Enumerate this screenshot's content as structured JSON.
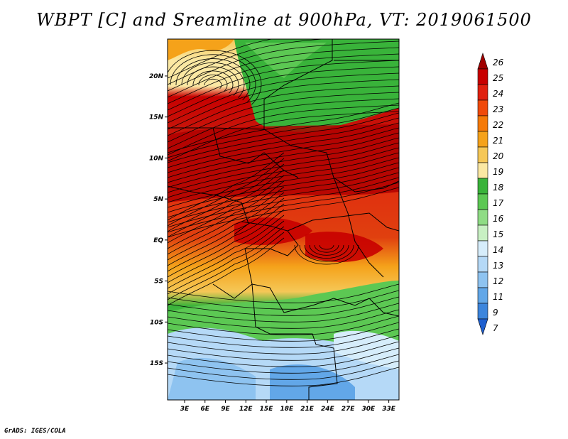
{
  "title": "WBPT [C] and Sreamline at 900hPa, VT: 2019061500",
  "footer": "GrADS: IGES/COLA",
  "map": {
    "lat_labels": [
      "20N",
      "15N",
      "10N",
      "5N",
      "EQ",
      "5S",
      "10S",
      "15S"
    ],
    "lon_labels": [
      "3E",
      "6E",
      "9E",
      "12E",
      "15E",
      "18E",
      "21E",
      "24E",
      "27E",
      "30E",
      "33E"
    ],
    "lat_values": [
      20,
      15,
      10,
      5,
      0,
      -5,
      -10,
      -15
    ],
    "lon_values": [
      3,
      6,
      9,
      12,
      15,
      18,
      21,
      24,
      27,
      30,
      33
    ],
    "lat_range": [
      -19.5,
      24.5
    ],
    "lon_range": [
      0.5,
      34.5
    ]
  },
  "colorbar": {
    "labels": [
      "26",
      "25",
      "24",
      "23",
      "22",
      "21",
      "20",
      "19",
      "18",
      "17",
      "16",
      "15",
      "14",
      "13",
      "12",
      "11",
      "9",
      "7"
    ],
    "colors": [
      "#a00000",
      "#c80000",
      "#e0200f",
      "#f04a0a",
      "#f57a08",
      "#f5a21a",
      "#f5c757",
      "#fbe8a3",
      "#39b33a",
      "#5cc853",
      "#8fdc85",
      "#c8f0c3",
      "#d6edfb",
      "#b5d9f7",
      "#8ec3f0",
      "#62a7e8",
      "#3c85dc",
      "#1e5fcf"
    ]
  }
}
